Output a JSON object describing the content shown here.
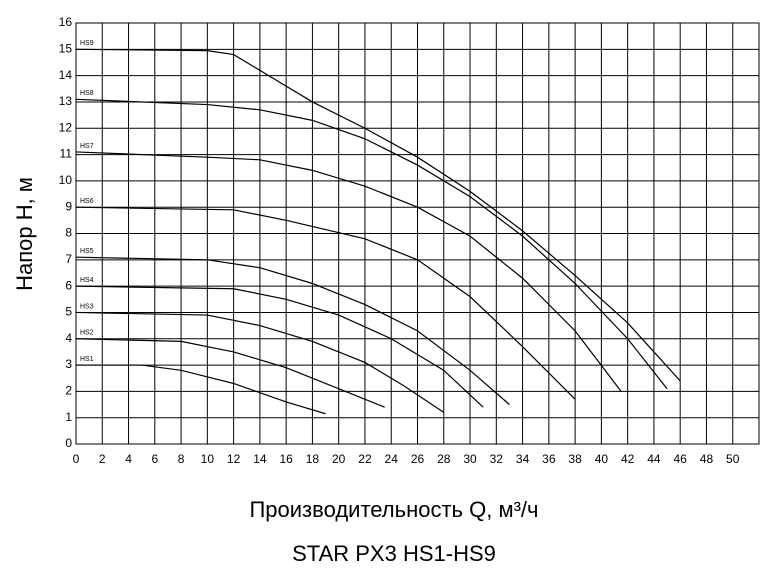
{
  "chart_data": {
    "type": "line",
    "title": "STAR PX3  HS1-HS9",
    "x_label": "Производительность Q, м³/ч",
    "y_label": "Напор H, м",
    "xlim": [
      0,
      52
    ],
    "xticks": [
      0,
      2,
      4,
      6,
      8,
      10,
      12,
      14,
      16,
      18,
      20,
      22,
      24,
      26,
      28,
      30,
      32,
      34,
      36,
      38,
      40,
      42,
      44,
      46,
      48,
      50
    ],
    "ylim": [
      0,
      16
    ],
    "yticks": [
      0,
      1,
      2,
      3,
      4,
      5,
      6,
      7,
      8,
      9,
      10,
      11,
      12,
      13,
      14,
      15,
      16
    ],
    "grid": true,
    "series": [
      {
        "name": "HS1",
        "color": "#000000",
        "x": [
          0,
          5,
          8,
          12,
          16,
          19
        ],
        "values": [
          3,
          3,
          2.8,
          2.3,
          1.6,
          1.15
        ]
      },
      {
        "name": "HS2",
        "color": "#000000",
        "x": [
          0,
          8,
          12,
          16,
          20,
          23.5
        ],
        "values": [
          4,
          3.9,
          3.5,
          2.9,
          2.1,
          1.4
        ]
      },
      {
        "name": "HS3",
        "color": "#000000",
        "x": [
          0,
          10,
          14,
          18,
          22,
          25,
          28
        ],
        "values": [
          5,
          4.9,
          4.5,
          3.9,
          3.1,
          2.2,
          1.2
        ]
      },
      {
        "name": "HS4",
        "color": "#000000",
        "x": [
          0,
          12,
          16,
          20,
          24,
          28,
          31
        ],
        "values": [
          6,
          5.9,
          5.5,
          4.9,
          4,
          2.8,
          1.4
        ]
      },
      {
        "name": "HS5",
        "color": "#000000",
        "x": [
          0,
          10,
          14,
          18,
          22,
          26,
          30,
          33
        ],
        "values": [
          7.1,
          7,
          6.7,
          6.1,
          5.3,
          4.3,
          2.8,
          1.5
        ]
      },
      {
        "name": "HS6",
        "color": "#000000",
        "x": [
          0,
          12,
          16,
          22,
          26,
          30,
          34,
          38
        ],
        "values": [
          9,
          8.9,
          8.5,
          7.8,
          7,
          5.6,
          3.7,
          1.7
        ]
      },
      {
        "name": "HS7",
        "color": "#000000",
        "x": [
          0,
          10,
          14,
          18,
          22,
          26,
          30,
          34,
          38,
          41.5
        ],
        "values": [
          11.1,
          10.9,
          10.8,
          10.4,
          9.8,
          9,
          7.9,
          6.3,
          4.3,
          2
        ]
      },
      {
        "name": "HS8",
        "color": "#000000",
        "x": [
          0,
          10,
          14,
          18,
          22,
          26,
          30,
          34,
          38,
          42,
          45
        ],
        "values": [
          13.1,
          12.9,
          12.7,
          12.3,
          11.6,
          10.6,
          9.4,
          7.9,
          6.1,
          4,
          2.1
        ]
      },
      {
        "name": "HS9",
        "color": "#000000",
        "x": [
          0,
          10,
          12,
          14,
          18,
          22,
          26,
          30,
          34,
          38,
          42,
          46
        ],
        "values": [
          15,
          14.95,
          14.8,
          14.2,
          13,
          12,
          10.9,
          9.6,
          8.1,
          6.4,
          4.6,
          2.4
        ]
      }
    ]
  }
}
